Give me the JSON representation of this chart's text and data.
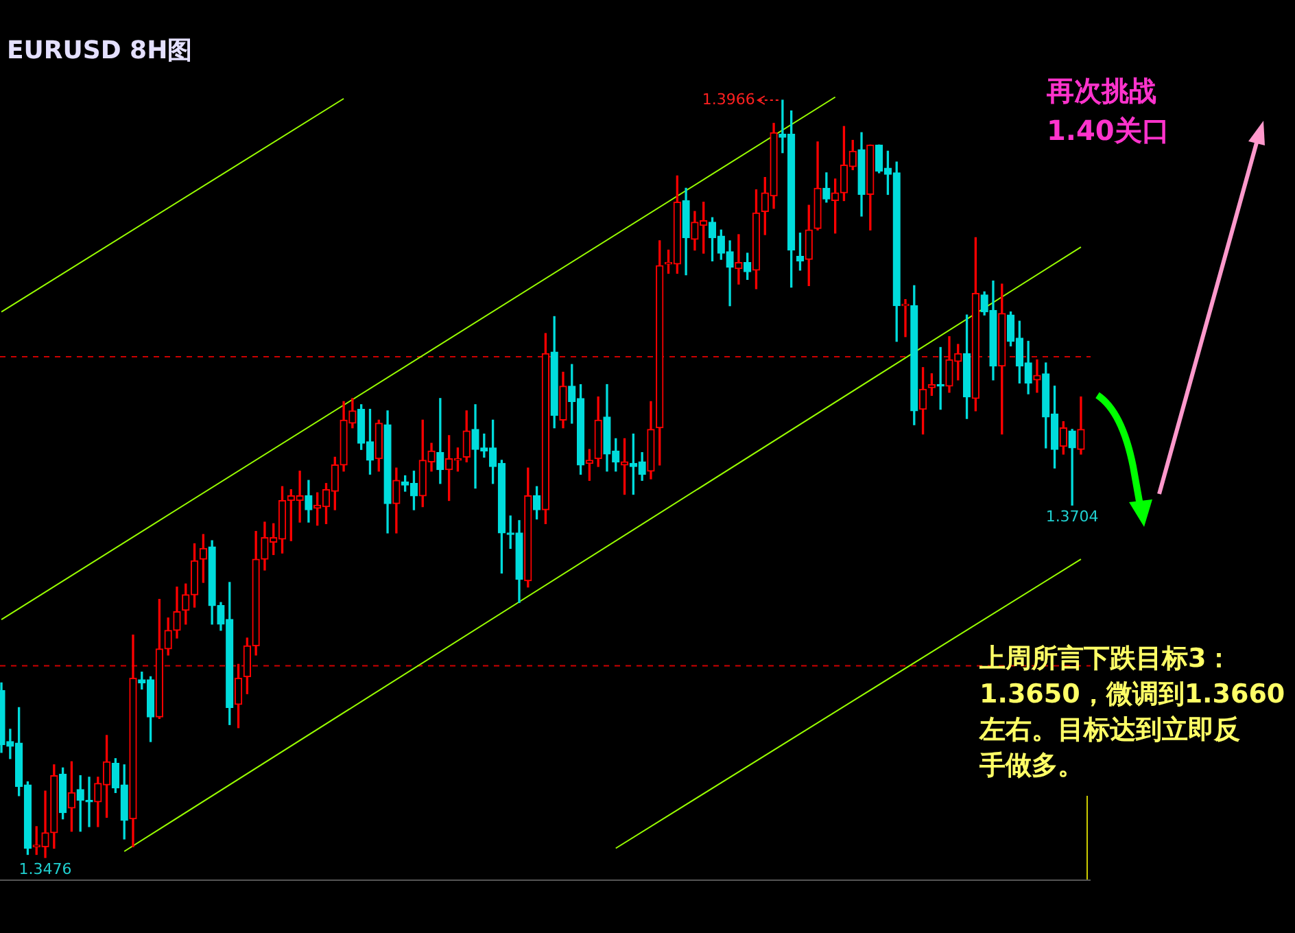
{
  "chart_data": {
    "type": "candlestick",
    "title": "EURUSD 8H图",
    "categories": [
      null,
      null,
      null,
      null,
      null,
      null,
      null,
      null,
      null,
      null,
      null,
      null,
      null,
      null,
      null,
      null,
      null,
      null,
      null,
      null,
      null,
      null,
      null,
      null,
      null,
      null,
      null,
      null,
      null,
      null,
      null,
      null,
      null,
      null,
      null,
      null,
      null,
      null,
      null,
      null,
      null,
      null,
      null,
      null,
      null,
      null,
      null,
      null,
      null,
      null,
      null,
      null,
      null,
      null,
      null,
      null,
      null,
      null,
      null,
      null,
      null,
      null,
      null,
      null,
      null,
      null,
      null,
      null,
      null,
      null,
      null,
      null,
      null,
      null,
      null,
      null,
      null,
      null,
      null,
      null,
      null,
      null,
      null,
      null,
      null,
      null,
      null,
      null,
      null,
      null,
      null,
      null,
      null,
      null,
      null,
      null,
      null,
      null,
      null,
      null,
      null,
      null,
      null,
      null,
      null,
      null,
      null,
      null,
      null,
      null,
      null,
      null,
      null,
      null,
      null,
      null,
      null,
      null,
      null,
      null,
      null,
      null,
      null,
      null
    ],
    "colors": [
      "#00dcdc",
      "#00dcdc",
      "#00dcdc",
      "#00dcdc",
      "#ff0000",
      "#ff0000",
      "#ff0000",
      "#00dcdc",
      "#ff0000",
      "#00dcdc",
      "#00dcdc",
      "#ff0000",
      "#ff0000",
      "#00dcdc",
      "#00dcdc",
      "#ff0000",
      "#00dcdc",
      "#00dcdc",
      "#ff0000",
      "#ff0000",
      "#ff0000",
      "#ff0000",
      "#ff0000",
      "#ff0000",
      "#00dcdc",
      "#00dcdc",
      "#00dcdc",
      "#ff0000",
      "#ff0000",
      "#ff0000",
      "#ff0000",
      "#ff0000",
      "#ff0000",
      "#ff0000",
      "#ff0000",
      "#00dcdc",
      "#ff0000",
      "#ff0000",
      "#ff0000",
      "#ff0000",
      "#ff0000",
      "#00dcdc",
      "#00dcdc",
      "#ff0000",
      "#00dcdc",
      "#ff0000",
      "#00dcdc",
      "#00dcdc",
      "#ff0000",
      "#ff0000",
      "#00dcdc",
      "#ff0000",
      "#ff0000",
      "#ff0000",
      "#00dcdc",
      "#00dcdc",
      "#00dcdc",
      "#00dcdc",
      "#00dcdc",
      "#00dcdc",
      "#ff0000",
      "#00dcdc",
      "#ff0000",
      "#00dcdc",
      "#ff0000",
      "#00dcdc",
      "#00dcdc",
      "#ff0000",
      "#ff0000",
      "#00dcdc",
      "#00dcdc",
      "#ff0000",
      "#00dcdc",
      "#00dcdc",
      "#ff0000",
      "#ff0000",
      "#ff0000",
      "#ff0000",
      "#00dcdc",
      "#ff0000",
      "#ff0000",
      "#00dcdc",
      "#00dcdc",
      "#00dcdc",
      "#ff0000",
      "#00dcdc",
      "#ff0000",
      "#ff0000",
      "#ff0000",
      "#00dcdc",
      "#00dcdc",
      "#00dcdc",
      "#ff0000",
      "#ff0000",
      "#00dcdc",
      "#ff0000",
      "#ff0000",
      "#ff0000",
      "#00dcdc",
      "#ff0000",
      "#00dcdc",
      "#00dcdc",
      "#00dcdc",
      "#ff0000",
      "#00dcdc",
      "#ff0000",
      "#ff0000",
      "#00dcdc",
      "#ff0000",
      "#ff0000",
      "#00dcdc",
      "#ff0000",
      "#00dcdc",
      "#00dcdc",
      "#ff0000",
      "#00dcdc",
      "#00dcdc",
      "#00dcdc",
      "#ff0000",
      "#00dcdc",
      "#00dcdc",
      "#ff0000",
      "#00dcdc",
      "#ff0000"
    ],
    "ohlc": [
      [
        1.3584,
        1.3589,
        1.3544,
        1.3549
      ],
      [
        1.3551,
        1.3559,
        1.354,
        1.3548
      ],
      [
        1.355,
        1.3573,
        1.3516,
        1.3522
      ],
      [
        1.3523,
        1.3525,
        1.3478,
        1.3482
      ],
      [
        1.3483,
        1.3496,
        1.3478,
        1.3484
      ],
      [
        1.3483,
        1.3519,
        1.3476,
        1.3492
      ],
      [
        1.3492,
        1.3536,
        1.3482,
        1.3529
      ],
      [
        1.353,
        1.3534,
        1.3501,
        1.3505
      ],
      [
        1.3508,
        1.3538,
        1.3493,
        1.3518
      ],
      [
        1.352,
        1.3529,
        1.3493,
        1.3513
      ],
      [
        1.3513,
        1.3528,
        1.3496,
        1.3512
      ],
      [
        1.3512,
        1.3528,
        1.3496,
        1.3524
      ],
      [
        1.3523,
        1.3555,
        1.3502,
        1.3538
      ],
      [
        1.3537,
        1.354,
        1.3518,
        1.3521
      ],
      [
        1.3523,
        1.3536,
        1.3488,
        1.35
      ],
      [
        1.3501,
        1.362,
        1.3483,
        1.3592
      ],
      [
        1.3591,
        1.3596,
        1.3585,
        1.3589
      ],
      [
        1.3591,
        1.3593,
        1.3551,
        1.3567
      ],
      [
        1.3567,
        1.3643,
        1.3566,
        1.3611
      ],
      [
        1.3611,
        1.3631,
        1.3607,
        1.3623
      ],
      [
        1.3623,
        1.3651,
        1.3618,
        1.3635
      ],
      [
        1.3636,
        1.3653,
        1.3627,
        1.3646
      ],
      [
        1.3646,
        1.3679,
        1.3638,
        1.3668
      ],
      [
        1.3669,
        1.3685,
        1.3654,
        1.3676
      ],
      [
        1.3677,
        1.3681,
        1.3627,
        1.3639
      ],
      [
        1.3639,
        1.3641,
        1.3623,
        1.3627
      ],
      [
        1.363,
        1.3654,
        1.3562,
        1.3573
      ],
      [
        1.3575,
        1.3601,
        1.356,
        1.3592
      ],
      [
        1.3593,
        1.3618,
        1.3582,
        1.3613
      ],
      [
        1.3613,
        1.3687,
        1.3607,
        1.3669
      ],
      [
        1.3669,
        1.3693,
        1.3662,
        1.3683
      ],
      [
        1.368,
        1.3692,
        1.3672,
        1.3683
      ],
      [
        1.3682,
        1.3716,
        1.3673,
        1.3707
      ],
      [
        1.3707,
        1.3714,
        1.3681,
        1.371
      ],
      [
        1.3707,
        1.3726,
        1.3693,
        1.371
      ],
      [
        1.371,
        1.372,
        1.3693,
        1.3701
      ],
      [
        1.3702,
        1.3712,
        1.3691,
        1.3704
      ],
      [
        1.3703,
        1.3718,
        1.3692,
        1.3714
      ],
      [
        1.3713,
        1.3735,
        1.3701,
        1.373
      ],
      [
        1.373,
        1.3771,
        1.3726,
        1.3759
      ],
      [
        1.3757,
        1.3773,
        1.3754,
        1.3765
      ],
      [
        1.3766,
        1.3769,
        1.374,
        1.3744
      ],
      [
        1.3745,
        1.3766,
        1.3724,
        1.3733
      ],
      [
        1.3734,
        1.3759,
        1.3726,
        1.3757
      ],
      [
        1.3756,
        1.3765,
        1.3686,
        1.3705
      ],
      [
        1.3705,
        1.3728,
        1.3686,
        1.372
      ],
      [
        1.3719,
        1.3723,
        1.3713,
        1.3717
      ],
      [
        1.3718,
        1.3726,
        1.3701,
        1.371
      ],
      [
        1.371,
        1.3759,
        1.3703,
        1.3733
      ],
      [
        1.3732,
        1.3744,
        1.3726,
        1.3739
      ],
      [
        1.3738,
        1.3773,
        1.3718,
        1.3727
      ],
      [
        1.3727,
        1.3749,
        1.3707,
        1.3734
      ],
      [
        1.3733,
        1.3741,
        1.3726,
        1.3734
      ],
      [
        1.3735,
        1.3765,
        1.3732,
        1.3752
      ],
      [
        1.3753,
        1.3769,
        1.3715,
        1.374
      ],
      [
        1.3741,
        1.375,
        1.3735,
        1.3739
      ],
      [
        1.3741,
        1.3759,
        1.3718,
        1.3729
      ],
      [
        1.3731,
        1.3733,
        1.366,
        1.3686
      ],
      [
        1.3686,
        1.3697,
        1.3676,
        1.3685
      ],
      [
        1.3686,
        1.3694,
        1.3641,
        1.3656
      ],
      [
        1.3655,
        1.3728,
        1.3651,
        1.371
      ],
      [
        1.371,
        1.3716,
        1.3695,
        1.3701
      ],
      [
        1.3701,
        1.3815,
        1.3692,
        1.3802
      ],
      [
        1.3803,
        1.3826,
        1.3754,
        1.3762
      ],
      [
        1.3759,
        1.379,
        1.3754,
        1.3781
      ],
      [
        1.3781,
        1.3795,
        1.3757,
        1.3771
      ],
      [
        1.3773,
        1.3782,
        1.3724,
        1.373
      ],
      [
        1.3731,
        1.374,
        1.372,
        1.3733
      ],
      [
        1.3734,
        1.3774,
        1.3729,
        1.3759
      ],
      [
        1.3761,
        1.3782,
        1.3726,
        1.3737
      ],
      [
        1.3739,
        1.3747,
        1.3726,
        1.3732
      ],
      [
        1.373,
        1.3747,
        1.3711,
        1.3732
      ],
      [
        1.3731,
        1.375,
        1.3711,
        1.3729
      ],
      [
        1.3732,
        1.3738,
        1.372,
        1.3724
      ],
      [
        1.3726,
        1.3771,
        1.3721,
        1.3753
      ],
      [
        1.3754,
        1.3875,
        1.373,
        1.3859
      ],
      [
        1.386,
        1.3869,
        1.3854,
        1.3861
      ],
      [
        1.386,
        1.3917,
        1.3854,
        1.39
      ],
      [
        1.3901,
        1.3909,
        1.3853,
        1.3877
      ],
      [
        1.3876,
        1.3894,
        1.3869,
        1.3887
      ],
      [
        1.3885,
        1.39,
        1.3867,
        1.3888
      ],
      [
        1.3887,
        1.389,
        1.3862,
        1.3877
      ],
      [
        1.3878,
        1.3882,
        1.3863,
        1.3867
      ],
      [
        1.3868,
        1.3875,
        1.3833,
        1.3858
      ],
      [
        1.3857,
        1.3879,
        1.3847,
        1.3861
      ],
      [
        1.3861,
        1.3867,
        1.385,
        1.3855
      ],
      [
        1.3856,
        1.3908,
        1.3844,
        1.3893
      ],
      [
        1.3894,
        1.3916,
        1.3879,
        1.3906
      ],
      [
        1.3904,
        1.3951,
        1.3896,
        1.3945
      ],
      [
        1.3944,
        1.3966,
        1.3932,
        1.3942
      ],
      [
        1.3944,
        1.3959,
        1.3845,
        1.3869
      ],
      [
        1.3865,
        1.388,
        1.3856,
        1.3862
      ],
      [
        1.3863,
        1.3898,
        1.3846,
        1.3882
      ],
      [
        1.3883,
        1.3939,
        1.3882,
        1.3909
      ],
      [
        1.3909,
        1.3919,
        1.39,
        1.3902
      ],
      [
        1.3901,
        1.3915,
        1.388,
        1.3906
      ],
      [
        1.3906,
        1.3949,
        1.3901,
        1.3924
      ],
      [
        1.3923,
        1.394,
        1.3921,
        1.3933
      ],
      [
        1.3934,
        1.3945,
        1.3891,
        1.3905
      ],
      [
        1.3905,
        1.3937,
        1.3882,
        1.3937
      ],
      [
        1.3937,
        1.3937,
        1.3919,
        1.392
      ],
      [
        1.3922,
        1.3933,
        1.3905,
        1.3918
      ],
      [
        1.3919,
        1.3926,
        1.381,
        1.3833
      ],
      [
        1.3833,
        1.3837,
        1.3813,
        1.3834
      ],
      [
        1.3833,
        1.3846,
        1.3756,
        1.3765
      ],
      [
        1.3766,
        1.3793,
        1.375,
        1.3779
      ],
      [
        1.378,
        1.3789,
        1.3775,
        1.3782
      ],
      [
        1.3782,
        1.3806,
        1.3766,
        1.3781
      ],
      [
        1.3781,
        1.3813,
        1.3777,
        1.3798
      ],
      [
        1.3797,
        1.3808,
        1.3785,
        1.3802
      ],
      [
        1.3802,
        1.3827,
        1.376,
        1.3774
      ],
      [
        1.3773,
        1.3877,
        1.3765,
        1.3841
      ],
      [
        1.384,
        1.3842,
        1.3827,
        1.3829
      ],
      [
        1.383,
        1.3849,
        1.3785,
        1.3794
      ],
      [
        1.3794,
        1.3847,
        1.375,
        1.3828
      ],
      [
        1.3827,
        1.3829,
        1.3807,
        1.381
      ],
      [
        1.3812,
        1.3823,
        1.3783,
        1.3794
      ],
      [
        1.3796,
        1.381,
        1.3776,
        1.3783
      ],
      [
        1.3785,
        1.3798,
        1.3777,
        1.3788
      ],
      [
        1.3789,
        1.3796,
        1.3741,
        1.3761
      ],
      [
        1.3763,
        1.3781,
        1.3728,
        1.374
      ],
      [
        1.3742,
        1.3758,
        1.3737,
        1.3754
      ],
      [
        1.3752,
        1.3753,
        1.3704,
        1.3741
      ],
      [
        1.374,
        1.3774,
        1.3737,
        1.3753
      ]
    ],
    "series": [
      {
        "type": "line",
        "color": "#99ff00",
        "values": [
          1.3829,
          null,
          null,
          null,
          null,
          null,
          null,
          null,
          null,
          null,
          null,
          null,
          null,
          null,
          null,
          null,
          null,
          null,
          null,
          null,
          null,
          null,
          null,
          null,
          null,
          null,
          null,
          null,
          null,
          null,
          null,
          null,
          null,
          null,
          null,
          null,
          null,
          null,
          null,
          1.3967,
          null,
          null,
          null,
          null,
          null,
          null,
          null,
          null,
          null,
          null,
          null,
          null,
          null,
          null,
          null,
          null,
          null,
          null,
          null,
          null,
          null,
          null,
          null,
          null,
          null,
          null,
          null,
          null,
          null,
          null,
          null,
          null,
          null,
          null,
          null,
          null,
          null,
          null,
          null,
          null,
          null,
          null,
          null,
          null,
          null,
          null,
          null,
          null,
          null,
          null,
          null,
          null,
          null,
          null,
          null,
          null,
          null,
          null,
          null,
          null,
          null,
          null,
          null,
          null,
          null,
          null,
          null,
          null,
          null,
          null,
          null,
          null,
          null,
          null,
          null,
          null,
          null,
          null,
          null,
          null,
          null,
          null,
          null,
          null
        ]
      },
      {
        "type": "line",
        "color": "#99ff00",
        "values": [
          1.363,
          null,
          null,
          null,
          null,
          null,
          null,
          null,
          null,
          null,
          null,
          null,
          null,
          null,
          null,
          null,
          null,
          null,
          null,
          null,
          null,
          null,
          null,
          null,
          null,
          null,
          null,
          null,
          null,
          null,
          null,
          null,
          null,
          null,
          null,
          null,
          null,
          null,
          null,
          null,
          null,
          null,
          null,
          null,
          null,
          null,
          null,
          null,
          null,
          null,
          null,
          null,
          null,
          null,
          null,
          null,
          null,
          null,
          null,
          null,
          null,
          null,
          null,
          null,
          null,
          null,
          null,
          null,
          null,
          null,
          null,
          null,
          null,
          null,
          null,
          null,
          null,
          null,
          null,
          null,
          null,
          null,
          null,
          null,
          null,
          null,
          null,
          null,
          null,
          null,
          null,
          null,
          null,
          null,
          null,
          1.3968,
          null,
          null,
          null,
          null,
          null,
          null,
          null,
          null,
          null,
          null,
          null,
          null,
          null,
          null,
          null,
          null,
          null,
          null,
          null,
          null,
          null,
          null,
          null,
          null,
          null,
          null,
          null,
          null
        ]
      },
      {
        "type": "line",
        "color": "#99ff00",
        "values": [
          null,
          null,
          null,
          null,
          null,
          null,
          null,
          null,
          null,
          null,
          null,
          null,
          null,
          null,
          1.348,
          null,
          null,
          null,
          null,
          null,
          null,
          null,
          null,
          null,
          null,
          null,
          null,
          null,
          null,
          null,
          null,
          null,
          null,
          null,
          null,
          null,
          null,
          null,
          null,
          null,
          null,
          null,
          null,
          null,
          null,
          null,
          null,
          null,
          null,
          null,
          null,
          null,
          null,
          null,
          null,
          null,
          null,
          null,
          null,
          null,
          null,
          null,
          null,
          null,
          null,
          null,
          null,
          null,
          null,
          null,
          null,
          null,
          null,
          null,
          null,
          null,
          null,
          null,
          null,
          null,
          null,
          null,
          null,
          null,
          null,
          null,
          null,
          null,
          null,
          null,
          null,
          null,
          null,
          null,
          null,
          null,
          null,
          null,
          null,
          null,
          null,
          null,
          null,
          null,
          null,
          null,
          null,
          null,
          null,
          null,
          null,
          null,
          null,
          null,
          null,
          null,
          null,
          null,
          null,
          null,
          null,
          null,
          null,
          1.3871
        ]
      },
      {
        "type": "line",
        "color": "#99ff00",
        "values": [
          null,
          null,
          null,
          null,
          null,
          null,
          null,
          null,
          null,
          null,
          null,
          null,
          null,
          null,
          null,
          null,
          null,
          null,
          null,
          null,
          null,
          null,
          null,
          null,
          null,
          null,
          null,
          null,
          null,
          null,
          null,
          null,
          null,
          null,
          null,
          null,
          null,
          null,
          null,
          null,
          null,
          null,
          null,
          null,
          null,
          null,
          null,
          null,
          null,
          null,
          null,
          null,
          null,
          null,
          null,
          null,
          null,
          null,
          null,
          null,
          null,
          null,
          null,
          null,
          null,
          null,
          null,
          null,
          null,
          null,
          1.3482,
          null,
          null,
          null,
          null,
          null,
          null,
          null,
          null,
          null,
          null,
          null,
          null,
          null,
          null,
          null,
          null,
          null,
          null,
          null,
          null,
          null,
          null,
          null,
          null,
          null,
          null,
          null,
          null,
          null,
          null,
          null,
          null,
          null,
          null,
          null,
          null,
          null,
          null,
          null,
          null,
          null,
          null,
          null,
          null,
          null,
          null,
          null,
          null,
          null,
          null,
          null,
          null,
          1.3669
        ]
      }
    ],
    "ref_lines": [
      {
        "axis": "y",
        "value": 1.38,
        "color": "#cc0000",
        "line_style": "dashed"
      },
      {
        "axis": "y",
        "value": 1.36,
        "color": "#cc0000",
        "line_style": "dashed"
      }
    ],
    "annotations": [
      "再次挑战\n1.40关口",
      "上周所言下跌目标3：1.3650，微调到1.3660左右。目标达到立即反手做多。",
      "1.3966",
      {
        "text": "1.3704",
        "y": 1.3704
      },
      {
        "text": "1.3476",
        "y": 1.3476
      }
    ]
  }
}
